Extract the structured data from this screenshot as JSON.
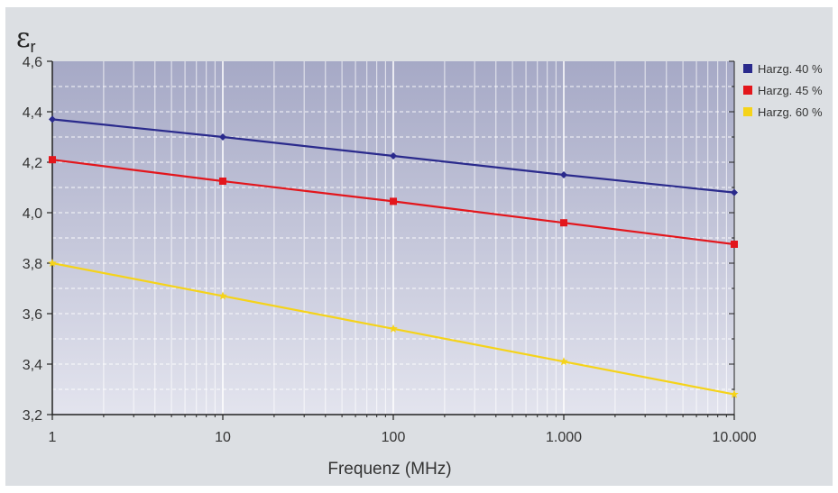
{
  "chart_data": {
    "type": "line",
    "ylabel_symbol": "ε",
    "ylabel_subscript": "r",
    "xlabel": "Frequenz (MHz)",
    "xscale": "log",
    "xlim": [
      1,
      10000
    ],
    "ylim": [
      3.2,
      4.6
    ],
    "x_ticks": [
      1,
      10,
      100,
      1000,
      10000
    ],
    "x_tick_labels": [
      "1",
      "10",
      "100",
      "1.000",
      "10.000"
    ],
    "y_ticks": [
      3.2,
      3.4,
      3.6,
      3.8,
      4.0,
      4.2,
      4.4,
      4.6
    ],
    "y_tick_labels": [
      "3,2",
      "3,4",
      "3,6",
      "3,8",
      "4,0",
      "4,2",
      "4,4",
      "4,6"
    ],
    "grid": true,
    "legend_position": "right",
    "x": [
      1,
      10,
      100,
      1000,
      10000
    ],
    "series": [
      {
        "name": "Harzg. 40 %",
        "color": "#2a2a8c",
        "marker": "diamond",
        "values": [
          4.37,
          4.3,
          4.225,
          4.15,
          4.08
        ]
      },
      {
        "name": "Harzg. 45 %",
        "color": "#e3161c",
        "marker": "square",
        "values": [
          4.21,
          4.125,
          4.045,
          3.96,
          3.875
        ]
      },
      {
        "name": "Harzg. 60 %",
        "color": "#f5d31a",
        "marker": "star",
        "values": [
          3.8,
          3.67,
          3.54,
          3.41,
          3.28
        ]
      }
    ]
  }
}
